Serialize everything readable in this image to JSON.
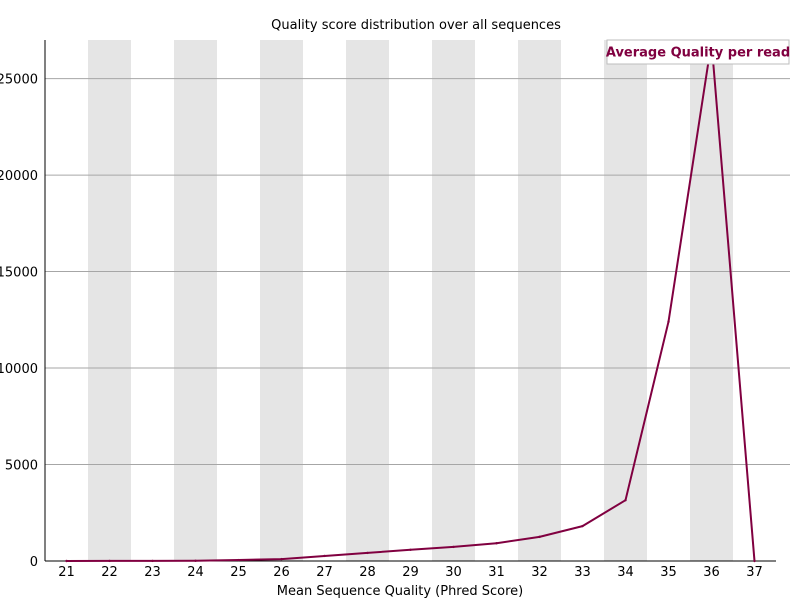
{
  "chart_data": {
    "type": "line",
    "title": "Quality score distribution over all sequences",
    "xlabel": "Mean Sequence Quality (Phred Score)",
    "ylabel": "",
    "x": [
      21,
      22,
      23,
      24,
      25,
      26,
      27,
      28,
      29,
      30,
      31,
      32,
      33,
      34,
      35,
      36,
      37
    ],
    "x_tick_labels": [
      "21",
      "22",
      "23",
      "24",
      "25",
      "26",
      "27",
      "28",
      "29",
      "30",
      "31",
      "32",
      "33",
      "34",
      "35",
      "36",
      "37"
    ],
    "y_ticks": [
      0,
      5000,
      10000,
      15000,
      20000,
      25000
    ],
    "y_tick_labels": [
      "0",
      "5000",
      "10000",
      "15000",
      "20000",
      "25000"
    ],
    "ylim": [
      0,
      27000
    ],
    "xlim": [
      20.5,
      37.5
    ],
    "grid": true,
    "alternating_bands": true,
    "legend_position": "top-right",
    "series": [
      {
        "name": "Average Quality per read",
        "color": "#800040",
        "values": [
          0,
          5,
          5,
          10,
          50,
          100,
          260,
          420,
          580,
          730,
          920,
          1250,
          1810,
          3150,
          12400,
          26900,
          0
        ]
      }
    ]
  }
}
